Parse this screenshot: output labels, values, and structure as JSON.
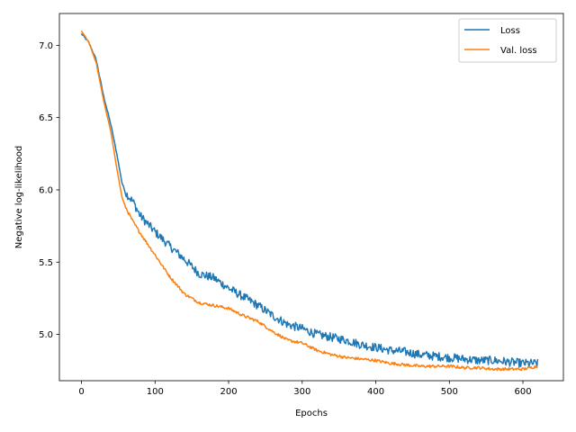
{
  "chart_data": {
    "type": "line",
    "title": "",
    "xlabel": "Epochs",
    "ylabel": "Negative log-likelihood",
    "xlim": [
      -30,
      655
    ],
    "ylim": [
      4.68,
      7.22
    ],
    "xticks": [
      0,
      100,
      200,
      300,
      400,
      500,
      600
    ],
    "yticks": [
      5.0,
      5.5,
      6.0,
      6.5,
      7.0
    ],
    "ytick_labels": [
      "5.0",
      "5.5",
      "6.0",
      "6.5",
      "7.0"
    ],
    "grid": false,
    "legend_position": "top-right",
    "series": [
      {
        "name": "Loss",
        "color": "#1f77b4",
        "noise": 0.03,
        "x": [
          0,
          5,
          10,
          20,
          30,
          40,
          48,
          55,
          60,
          70,
          80,
          100,
          120,
          140,
          160,
          180,
          200,
          220,
          240,
          260,
          280,
          300,
          320,
          340,
          360,
          380,
          400,
          420,
          440,
          460,
          480,
          500,
          520,
          540,
          560,
          580,
          600,
          620
        ],
        "y": [
          7.08,
          7.05,
          7.02,
          6.9,
          6.65,
          6.45,
          6.25,
          6.05,
          5.98,
          5.92,
          5.82,
          5.71,
          5.61,
          5.52,
          5.42,
          5.39,
          5.32,
          5.26,
          5.2,
          5.13,
          5.07,
          5.04,
          5.0,
          4.98,
          4.96,
          4.93,
          4.91,
          4.89,
          4.88,
          4.86,
          4.85,
          4.84,
          4.83,
          4.82,
          4.82,
          4.81,
          4.8,
          4.8
        ]
      },
      {
        "name": "Val. loss",
        "color": "#ff7f0e",
        "noise": 0.01,
        "x": [
          0,
          5,
          10,
          20,
          30,
          40,
          48,
          55,
          60,
          70,
          80,
          100,
          120,
          140,
          160,
          180,
          200,
          220,
          240,
          260,
          280,
          300,
          320,
          340,
          360,
          380,
          400,
          420,
          440,
          460,
          480,
          500,
          520,
          540,
          560,
          580,
          600,
          620
        ],
        "y": [
          7.1,
          7.06,
          7.02,
          6.88,
          6.62,
          6.4,
          6.15,
          5.95,
          5.88,
          5.78,
          5.7,
          5.55,
          5.4,
          5.28,
          5.22,
          5.2,
          5.18,
          5.13,
          5.09,
          5.02,
          4.96,
          4.94,
          4.89,
          4.86,
          4.84,
          4.83,
          4.82,
          4.8,
          4.79,
          4.78,
          4.78,
          4.78,
          4.77,
          4.77,
          4.76,
          4.76,
          4.76,
          4.78
        ]
      }
    ]
  }
}
